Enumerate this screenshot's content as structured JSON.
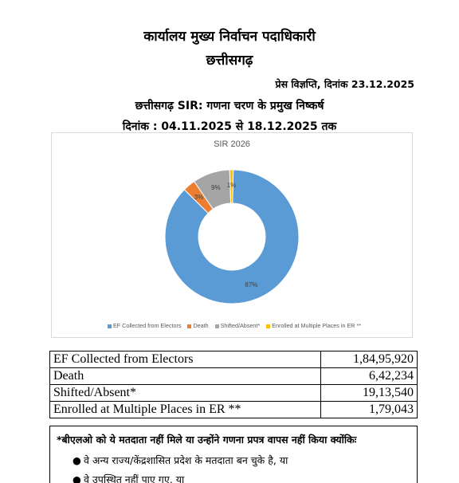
{
  "header": {
    "title": "कार्यालय मुख्य निर्वाचन पदाधिकारी",
    "state": "छत्तीसगढ़",
    "press_release": "प्रेस विज्ञप्ति, दिनांक 23.12.2025",
    "subtitle": "छत्तीसगढ़ SIR: गणना चरण के प्रमुख निष्कर्ष",
    "date_range": "दिनांक : 04.11.2025 से 18.12.2025 तक"
  },
  "chart_data": {
    "type": "pie",
    "title": "SIR 2026",
    "labels": [
      "EF Collected from Electors",
      "Death",
      "Shifted/Absent*",
      "Enrolled at Multiple Places in ER **"
    ],
    "values": [
      18495920,
      642234,
      1913540,
      179043
    ],
    "percent_labels": [
      "87%",
      "3%",
      "9%",
      "1%"
    ],
    "colors": [
      "#5b9bd5",
      "#ed7d31",
      "#a5a5a5",
      "#ffc000"
    ],
    "donut": true,
    "legend_position": "bottom"
  },
  "table": {
    "rows": [
      {
        "label": "EF Collected from Electors",
        "value": "1,84,95,920"
      },
      {
        "label": "Death",
        "value": "6,42,234"
      },
      {
        "label": "Shifted/Absent*",
        "value": "19,13,540"
      },
      {
        "label": "Enrolled at Multiple Places in ER **",
        "value": "1,79,043"
      }
    ]
  },
  "note": {
    "title": "*बीएलओ को ये मतदाता नहीं मिले या उन्होंने गणना प्रपत्र वापस नहीं किया क्योंकिः",
    "bullets": [
      "वे अन्य राज्य/केंद्रशासित प्रदेश के मतदाता बन चुके है, या",
      "वे उपस्थित नहीं पाए गए, या"
    ]
  }
}
